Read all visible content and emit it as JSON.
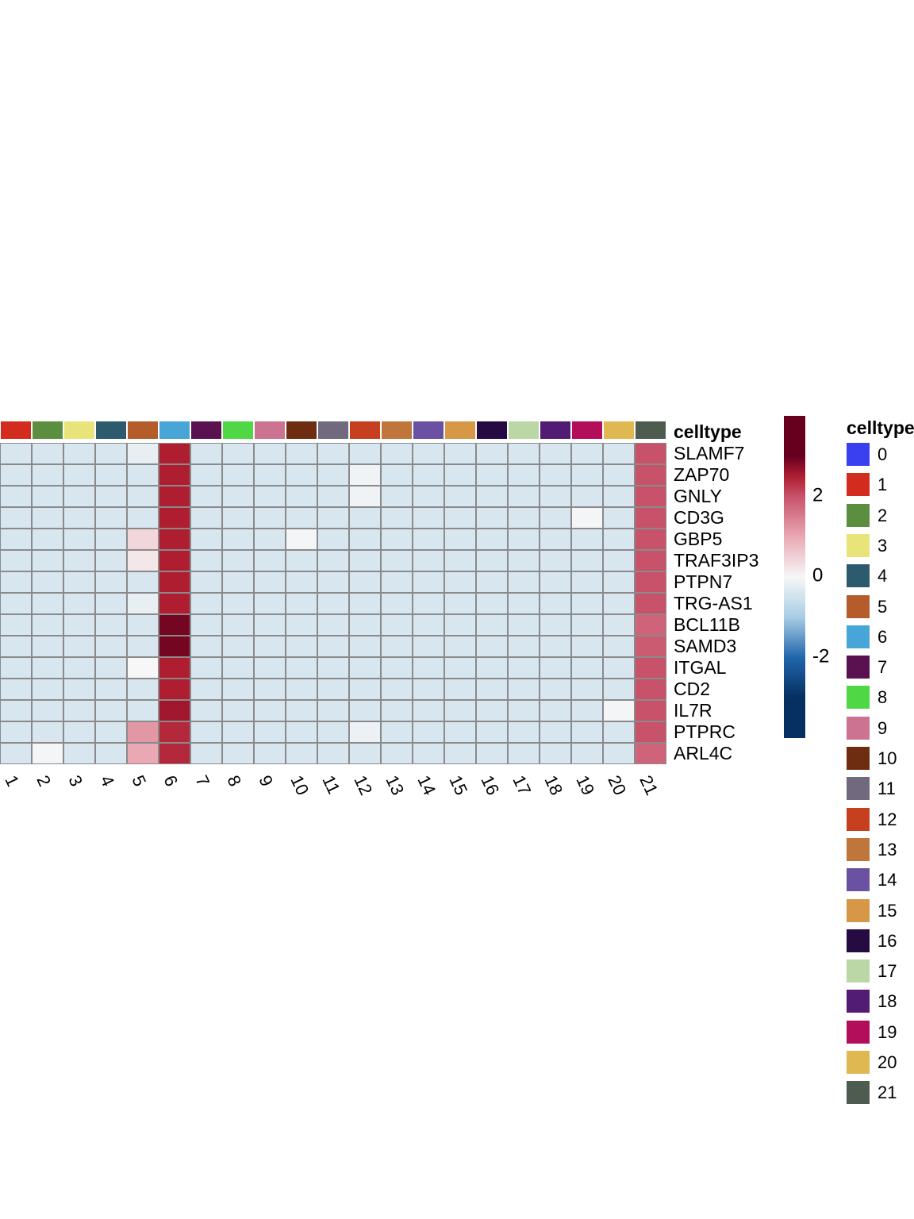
{
  "chart_data": {
    "type": "heatmap",
    "annotation_title": "celltype",
    "genes": [
      "SLAMF7",
      "ZAP70",
      "GNLY",
      "CD3G",
      "GBP5",
      "TRAF3IP3",
      "PTPN7",
      "TRG-AS1",
      "BCL11B",
      "SAMD3",
      "ITGAL",
      "CD2",
      "IL7R",
      "PTPRC",
      "ARL4C"
    ],
    "clusters": [
      "1",
      "2",
      "3",
      "4",
      "5",
      "6",
      "7",
      "8",
      "9",
      "10",
      "11",
      "12",
      "13",
      "14",
      "15",
      "16",
      "17",
      "18",
      "19",
      "20",
      "21"
    ],
    "values": [
      [
        -0.4,
        -0.4,
        -0.4,
        -0.4,
        -0.2,
        2.5,
        -0.4,
        -0.4,
        -0.4,
        -0.4,
        -0.4,
        -0.4,
        -0.4,
        -0.4,
        -0.4,
        -0.4,
        -0.4,
        -0.4,
        -0.4,
        -0.4,
        2.0
      ],
      [
        -0.4,
        -0.4,
        -0.4,
        -0.4,
        -0.4,
        2.5,
        -0.4,
        -0.4,
        -0.4,
        -0.4,
        -0.4,
        -0.1,
        -0.4,
        -0.4,
        -0.4,
        -0.4,
        -0.4,
        -0.4,
        -0.4,
        -0.4,
        2.0
      ],
      [
        -0.4,
        -0.4,
        -0.4,
        -0.4,
        -0.4,
        2.5,
        -0.4,
        -0.4,
        -0.4,
        -0.4,
        -0.4,
        -0.1,
        -0.4,
        -0.4,
        -0.4,
        -0.4,
        -0.4,
        -0.4,
        -0.4,
        -0.4,
        2.0
      ],
      [
        -0.4,
        -0.4,
        -0.4,
        -0.4,
        -0.4,
        2.5,
        -0.4,
        -0.4,
        -0.4,
        -0.4,
        -0.4,
        -0.4,
        -0.4,
        -0.4,
        -0.4,
        -0.4,
        -0.4,
        -0.4,
        -0.05,
        -0.4,
        2.0
      ],
      [
        -0.4,
        -0.4,
        -0.4,
        -0.4,
        0.4,
        2.5,
        -0.4,
        -0.4,
        -0.4,
        -0.05,
        -0.4,
        -0.4,
        -0.4,
        -0.4,
        -0.4,
        -0.4,
        -0.4,
        -0.4,
        -0.4,
        -0.4,
        2.0
      ],
      [
        -0.4,
        -0.4,
        -0.4,
        -0.4,
        0.2,
        2.5,
        -0.4,
        -0.4,
        -0.4,
        -0.4,
        -0.4,
        -0.4,
        -0.4,
        -0.4,
        -0.4,
        -0.4,
        -0.4,
        -0.4,
        -0.4,
        -0.4,
        2.0
      ],
      [
        -0.4,
        -0.4,
        -0.4,
        -0.4,
        -0.4,
        2.5,
        -0.4,
        -0.4,
        -0.4,
        -0.4,
        -0.4,
        -0.4,
        -0.4,
        -0.4,
        -0.4,
        -0.4,
        -0.4,
        -0.4,
        -0.4,
        -0.4,
        2.0
      ],
      [
        -0.4,
        -0.4,
        -0.4,
        -0.4,
        -0.2,
        2.5,
        -0.4,
        -0.4,
        -0.4,
        -0.4,
        -0.4,
        -0.4,
        -0.4,
        -0.4,
        -0.4,
        -0.4,
        -0.4,
        -0.4,
        -0.4,
        -0.4,
        2.0
      ],
      [
        -0.4,
        -0.4,
        -0.4,
        -0.4,
        -0.4,
        2.9,
        -0.4,
        -0.4,
        -0.4,
        -0.4,
        -0.4,
        -0.4,
        -0.4,
        -0.4,
        -0.4,
        -0.4,
        -0.4,
        -0.4,
        -0.4,
        -0.4,
        1.8
      ],
      [
        -0.4,
        -0.4,
        -0.4,
        -0.4,
        -0.4,
        2.9,
        -0.4,
        -0.4,
        -0.4,
        -0.4,
        -0.4,
        -0.4,
        -0.4,
        -0.4,
        -0.4,
        -0.4,
        -0.4,
        -0.4,
        -0.4,
        -0.4,
        1.9
      ],
      [
        -0.4,
        -0.4,
        -0.4,
        -0.4,
        0.0,
        2.5,
        -0.4,
        -0.4,
        -0.4,
        -0.4,
        -0.4,
        -0.4,
        -0.4,
        -0.4,
        -0.4,
        -0.4,
        -0.4,
        -0.4,
        -0.4,
        -0.4,
        2.0
      ],
      [
        -0.4,
        -0.4,
        -0.4,
        -0.4,
        -0.4,
        2.5,
        -0.4,
        -0.4,
        -0.4,
        -0.4,
        -0.4,
        -0.4,
        -0.4,
        -0.4,
        -0.4,
        -0.4,
        -0.4,
        -0.4,
        -0.4,
        -0.4,
        2.0
      ],
      [
        -0.4,
        -0.4,
        -0.4,
        -0.4,
        -0.4,
        2.6,
        -0.4,
        -0.4,
        -0.4,
        -0.4,
        -0.4,
        -0.4,
        -0.4,
        -0.4,
        -0.4,
        -0.4,
        -0.4,
        -0.4,
        -0.4,
        -0.05,
        2.0
      ],
      [
        -0.4,
        -0.4,
        -0.4,
        -0.4,
        1.2,
        2.4,
        -0.4,
        -0.4,
        -0.4,
        -0.4,
        -0.4,
        -0.15,
        -0.4,
        -0.4,
        -0.4,
        -0.4,
        -0.4,
        -0.4,
        -0.4,
        -0.4,
        2.0
      ],
      [
        -0.4,
        -0.05,
        -0.4,
        -0.4,
        1.0,
        2.4,
        -0.4,
        -0.4,
        -0.4,
        -0.4,
        -0.4,
        -0.4,
        -0.4,
        -0.4,
        -0.4,
        -0.4,
        -0.4,
        -0.4,
        -0.4,
        -0.4,
        1.8
      ]
    ],
    "colormap": {
      "stops": [
        [
          -3,
          "#053061"
        ],
        [
          -2,
          "#2166ac"
        ],
        [
          -1,
          "#a8cde4"
        ],
        [
          0,
          "#f7f7f7"
        ],
        [
          1,
          "#e9a8b4"
        ],
        [
          2,
          "#c8526a"
        ],
        [
          2.5,
          "#af1d30"
        ],
        [
          3,
          "#67001f"
        ]
      ]
    },
    "colorbar": {
      "tick_labels": [
        "2",
        "0",
        "-2"
      ],
      "tick_values": [
        2,
        0,
        -2
      ],
      "range": [
        -4,
        4
      ]
    },
    "celltype_legend": {
      "title": "celltype",
      "labels": [
        "0",
        "1",
        "2",
        "3",
        "4",
        "5",
        "6",
        "7",
        "8",
        "9",
        "10",
        "11",
        "12",
        "13",
        "14",
        "15",
        "16",
        "17",
        "18",
        "19",
        "20",
        "21"
      ],
      "colors": [
        "#3a3ff0",
        "#d32b1e",
        "#5b8f3f",
        "#e9e47a",
        "#2e5a6e",
        "#b45c2a",
        "#47a5d7",
        "#591150",
        "#4fd745",
        "#cb7390",
        "#6e2c10",
        "#716a7e",
        "#c64020",
        "#c0763b",
        "#6b51a2",
        "#d69746",
        "#250b41",
        "#bcd7a6",
        "#521c75",
        "#b30e59",
        "#dfb852",
        "#4d5c4f"
      ]
    }
  }
}
